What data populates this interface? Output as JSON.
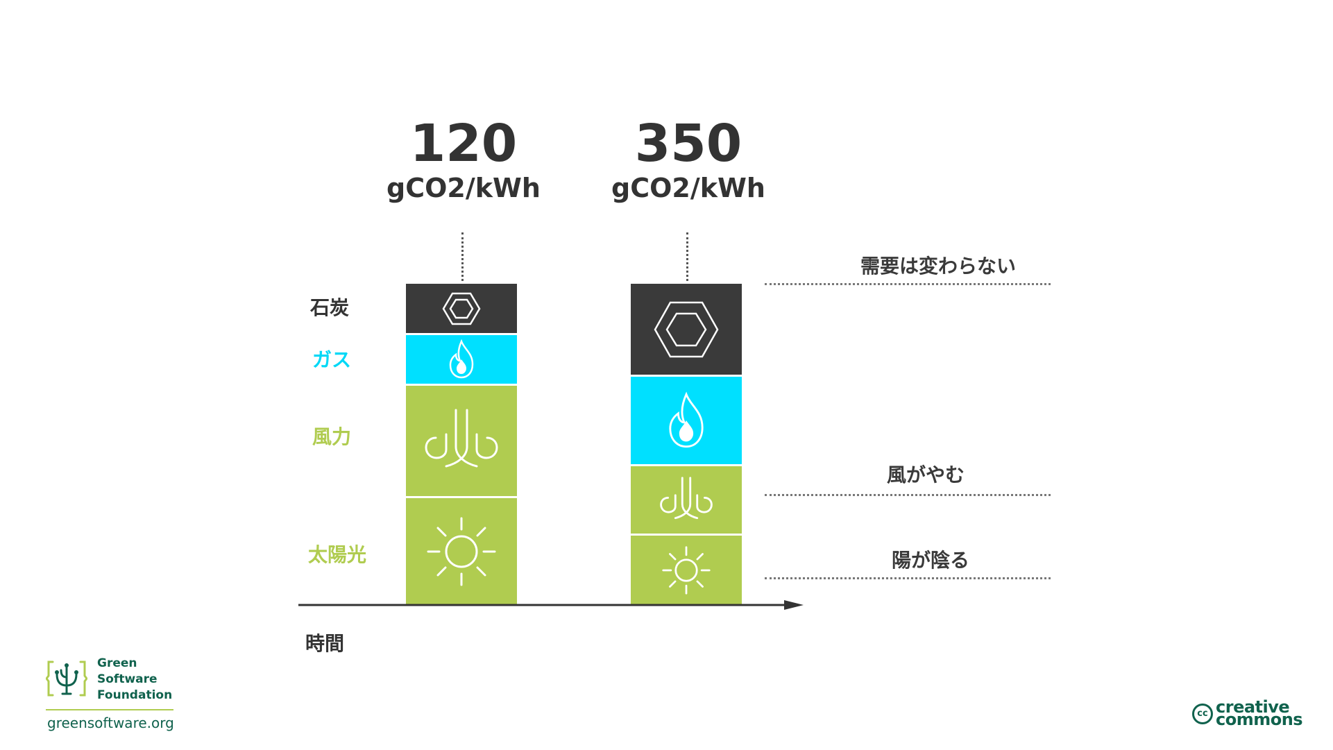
{
  "columns": [
    {
      "value": "120",
      "unit": "gCO2/kWh"
    },
    {
      "value": "350",
      "unit": "gCO2/kWh"
    }
  ],
  "sources": {
    "coal": "石炭",
    "gas": "ガス",
    "wind": "風力",
    "solar": "太陽光"
  },
  "notes": {
    "demand": "需要は変わらない",
    "wind_stops": "風がやむ",
    "sun_hides": "陽が陰る"
  },
  "axis": {
    "time": "時間"
  },
  "colors": {
    "coal": "#3a3a3a",
    "gas": "#00e0ff",
    "renewable": "#b0cc50",
    "brand": "#10624d"
  },
  "icons": [
    "hexagon-icon",
    "flame-icon",
    "wind-icon",
    "sun-icon"
  ],
  "footer": {
    "org_line1": "Green",
    "org_line2": "Software",
    "org_line3": "Foundation",
    "url": "greensoftware.org",
    "cc_line1": "creative",
    "cc_line2": "commons",
    "cc_mark": "cc"
  }
}
